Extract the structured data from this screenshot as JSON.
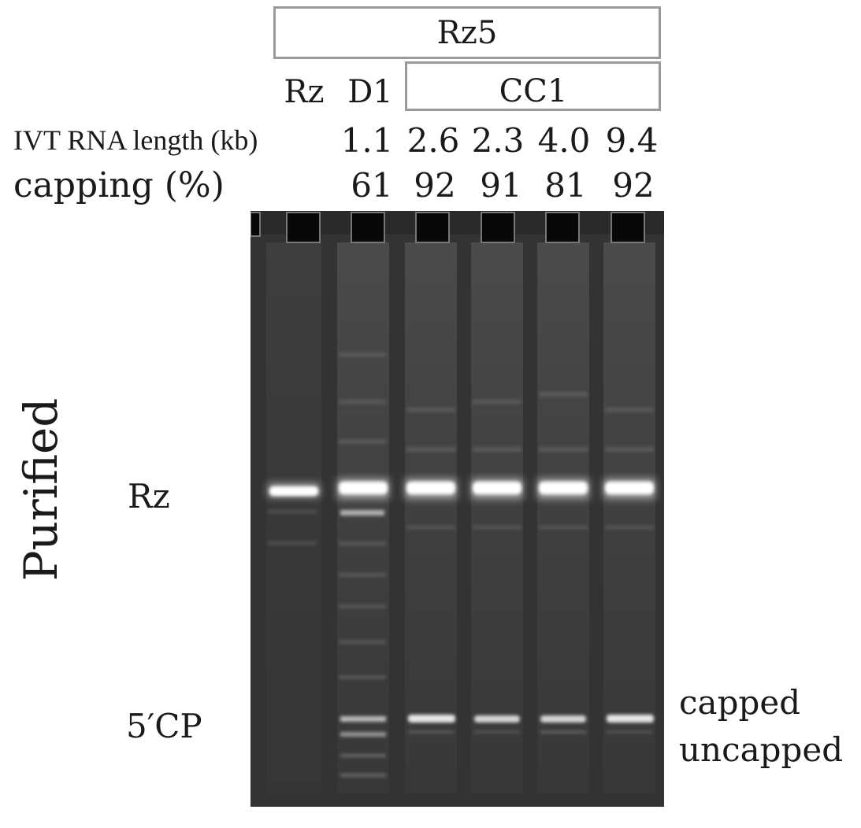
{
  "header": {
    "construct": "Rz5",
    "group": "CC1",
    "lanes": [
      "Rz",
      "D1"
    ]
  },
  "rows": {
    "length_label": "IVT RNA length (kb)",
    "capping_label": "capping (%)",
    "lengths": [
      "1.1",
      "2.6",
      "2.3",
      "4.0",
      "9.4"
    ],
    "capping": [
      "61",
      "92",
      "91",
      "81",
      "92"
    ]
  },
  "side": {
    "panel": "Purified",
    "rz_marker": "Rz",
    "cp_marker": "5′CP",
    "capped": "capped",
    "uncapped": "uncapped"
  },
  "colors": {
    "box_border": "#9a9a9a",
    "gel_bg": "#333333",
    "band": "#ffffff"
  }
}
